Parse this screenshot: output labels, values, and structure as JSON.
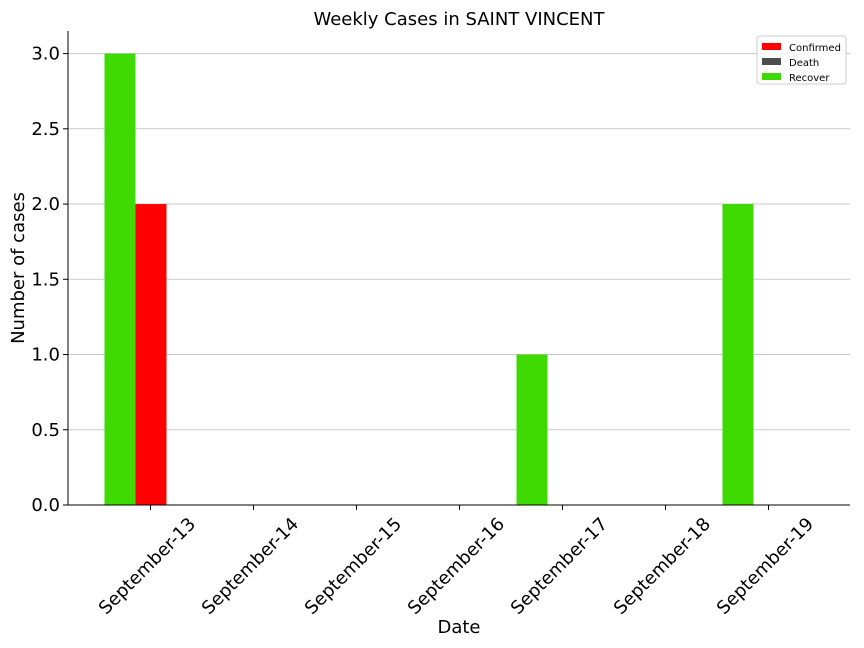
{
  "chart_data": {
    "type": "bar",
    "title": "Weekly Cases in SAINT VINCENT",
    "xlabel": "Date",
    "ylabel": "Number of cases",
    "categories": [
      "September-13",
      "September-14",
      "September-15",
      "September-16",
      "September-17",
      "September-18",
      "September-19"
    ],
    "series": [
      {
        "name": "Confirmed",
        "color": "#ff0000",
        "values": [
          2,
          0,
          0,
          0,
          0,
          0,
          0
        ]
      },
      {
        "name": "Death",
        "color": "#4d4d4d",
        "values": [
          0,
          0,
          0,
          0,
          0,
          0,
          0
        ]
      },
      {
        "name": "Recover",
        "color": "#3dd900",
        "values": [
          3,
          0,
          0,
          0,
          1,
          0,
          2
        ]
      }
    ],
    "ylim": [
      0,
      3.15
    ],
    "yticks": [
      "0.0",
      "0.5",
      "1.0",
      "1.5",
      "2.0",
      "2.5",
      "3.0"
    ],
    "grid": "horizontal",
    "legend_position": "top-right"
  }
}
